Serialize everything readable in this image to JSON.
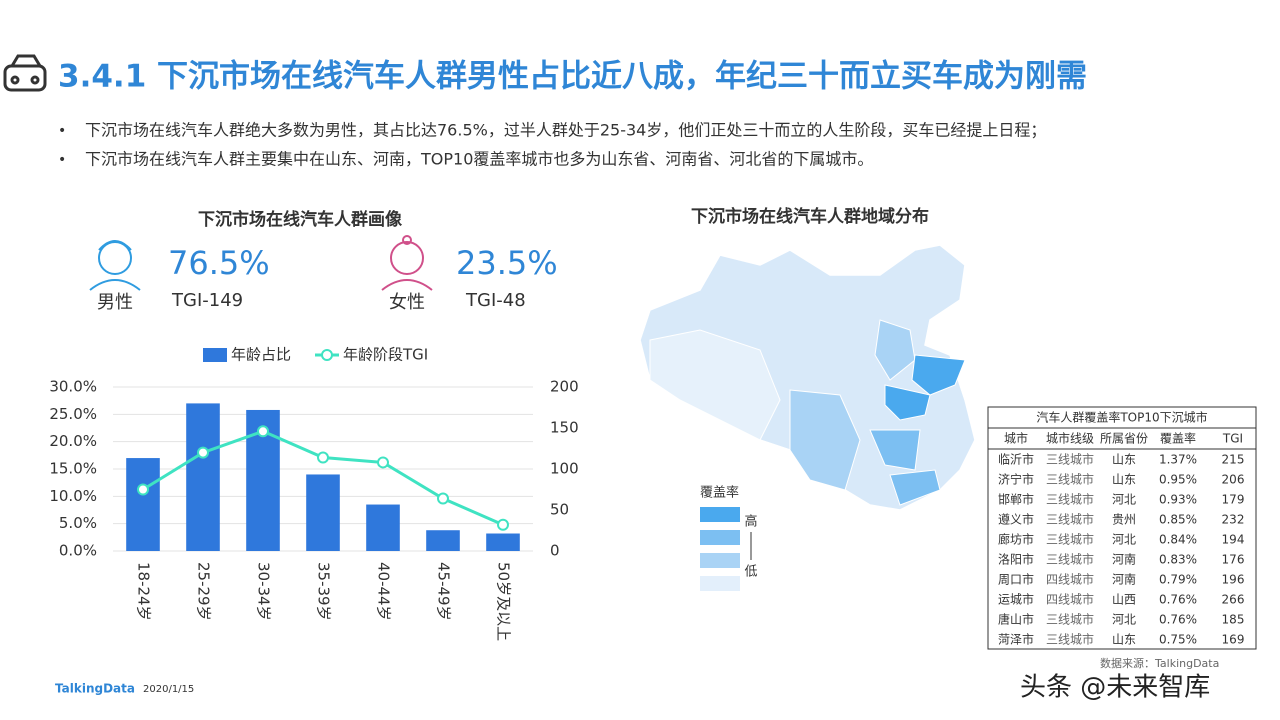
{
  "header": {
    "title": "3.4.1 下沉市场在线汽车人群男性占比近八成，年纪三十而立买车成为刚需"
  },
  "bullets": [
    "下沉市场在线汽车人群绝大多数为男性，其占比达76.5%，过半人群处于25-34岁，他们正处三十而立的人生阶段，买车已经提上日程；",
    "下沉市场在线汽车人群主要集中在山东、河南，TOP10覆盖率城市也多为山东省、河南省、河北省的下属城市。"
  ],
  "profile": {
    "title": "下沉市场在线汽车人群画像",
    "male": {
      "share": "76.5%",
      "label": "男性",
      "tgi": "TGI-149"
    },
    "female": {
      "share": "23.5%",
      "label": "女性",
      "tgi": "TGI-48"
    }
  },
  "chart_data": {
    "type": "bar",
    "categories": [
      "18-24岁",
      "25-29岁",
      "30-34岁",
      "35-39岁",
      "40-44岁",
      "45-49岁",
      "50岁及以上"
    ],
    "series": [
      {
        "name": "年龄占比",
        "type": "bar",
        "color": "#2f78dc",
        "values": [
          17.0,
          27.0,
          25.8,
          14.0,
          8.5,
          3.8,
          3.2
        ]
      },
      {
        "name": "年龄阶段TGI",
        "type": "line",
        "axis": "y2",
        "color": "#3fe3c2",
        "values": [
          75,
          120,
          146,
          114,
          108,
          64,
          32
        ]
      }
    ],
    "ylim": [
      0,
      30
    ],
    "yticks": [
      {
        "value": 0,
        "label": "0.0%"
      },
      {
        "value": 5,
        "label": "5.0%"
      },
      {
        "value": 10,
        "label": "10.0%"
      },
      {
        "value": 15,
        "label": "15.0%"
      },
      {
        "value": 20,
        "label": "20.0%"
      },
      {
        "value": 25,
        "label": "25.0%"
      },
      {
        "value": 30,
        "label": "30.0%"
      }
    ],
    "y2lim": [
      0,
      200
    ],
    "y2ticks": [
      0,
      50,
      100,
      150,
      200
    ],
    "grid": true
  },
  "map": {
    "title": "下沉市场在线汽车人群地域分布",
    "legend_title": "覆盖率",
    "high": "高",
    "low": "低"
  },
  "table": {
    "title": "汽车人群覆盖率TOP10下沉城市",
    "header": [
      "城市",
      "城市线级",
      "所属省份",
      "覆盖率",
      "TGI"
    ],
    "rows": [
      [
        "临沂市",
        "三线城市",
        "山东",
        "1.37%",
        "215"
      ],
      [
        "济宁市",
        "三线城市",
        "山东",
        "0.95%",
        "206"
      ],
      [
        "邯郸市",
        "三线城市",
        "河北",
        "0.93%",
        "179"
      ],
      [
        "遵义市",
        "三线城市",
        "贵州",
        "0.85%",
        "232"
      ],
      [
        "廊坊市",
        "三线城市",
        "河北",
        "0.84%",
        "194"
      ],
      [
        "洛阳市",
        "三线城市",
        "河南",
        "0.83%",
        "176"
      ],
      [
        "周口市",
        "四线城市",
        "河南",
        "0.79%",
        "196"
      ],
      [
        "运城市",
        "四线城市",
        "山西",
        "0.76%",
        "266"
      ],
      [
        "唐山市",
        "三线城市",
        "河北",
        "0.76%",
        "185"
      ],
      [
        "菏泽市",
        "三线城市",
        "山东",
        "0.75%",
        "169"
      ]
    ]
  },
  "footer": {
    "brand": "TalkingData",
    "date": "2020/1/15",
    "source": "数据来源：TalkingData",
    "watermark": "头条 @未来智库"
  }
}
